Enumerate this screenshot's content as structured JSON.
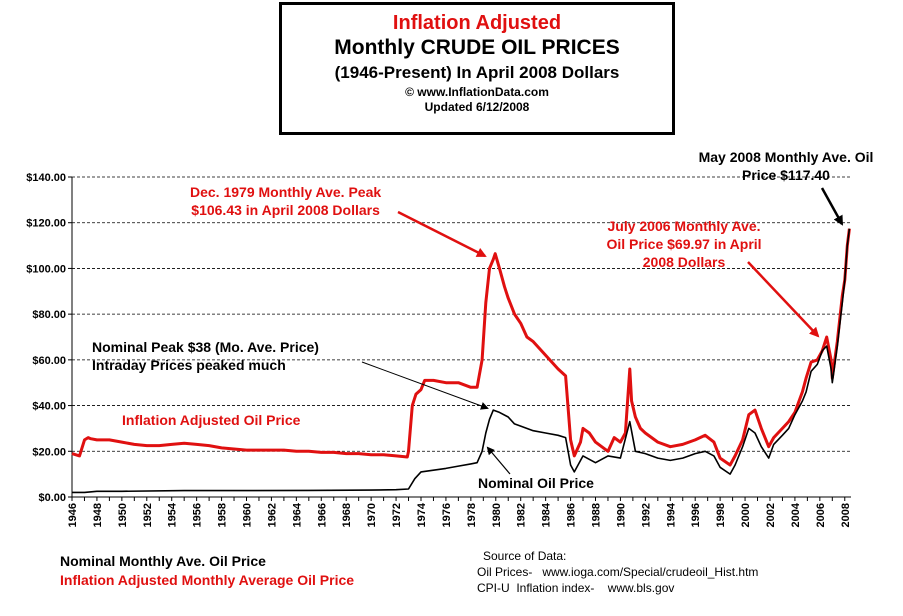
{
  "title": {
    "line1": "Inflation Adjusted",
    "line2": "Monthly CRUDE OIL PRICES",
    "line3": "(1946-Present) In April 2008 Dollars",
    "line4": "© www.InflationData.com",
    "line5": "Updated 6/12/2008"
  },
  "annotations": {
    "peak_1979": [
      "Dec. 1979 Monthly Ave. Peak",
      "$106.43 in April 2008 Dollars"
    ],
    "july_2006": [
      "July 2006 Monthly Ave.",
      "Oil Price $69.97 in April",
      "2008 Dollars"
    ],
    "may_2008": [
      "May 2008 Monthly Ave. Oil",
      "Price $117.40"
    ],
    "nominal_peak": [
      "Nominal Peak $38 (Mo. Ave. Price)",
      "Intraday Prices peaked much"
    ],
    "adjusted_label": "Inflation Adjusted Oil Price",
    "nominal_label": "Nominal Oil Price"
  },
  "legend": {
    "nominal": "Nominal Monthly Ave. Oil Price",
    "adjusted": "Inflation Adjusted Monthly Average Oil Price"
  },
  "source": {
    "heading": "Source of Data:",
    "line1": "Oil Prices-   www.ioga.com/Special/crudeoil_Hist.htm",
    "line2": "CPI-U  Inflation index-    www.bls.gov"
  },
  "colors": {
    "adjusted": "#e01010",
    "nominal": "#000000"
  },
  "chart_data": {
    "type": "line",
    "title": "Inflation Adjusted Monthly CRUDE OIL PRICES",
    "xlabel": "",
    "ylabel": "",
    "xlim": [
      1946,
      2008.5
    ],
    "ylim": [
      0,
      140
    ],
    "x_ticks": [
      1946,
      1948,
      1950,
      1952,
      1954,
      1956,
      1958,
      1960,
      1962,
      1964,
      1966,
      1968,
      1970,
      1972,
      1974,
      1976,
      1978,
      1980,
      1982,
      1984,
      1986,
      1988,
      1990,
      1992,
      1994,
      1996,
      1998,
      2000,
      2002,
      2004,
      2006,
      2008
    ],
    "y_ticks": [
      0,
      20,
      40,
      60,
      80,
      100,
      120,
      140
    ],
    "y_tick_labels": [
      "$0.00",
      "$20.00",
      "$40.00",
      "$60.00",
      "$80.00",
      "$100.00",
      "$120.00",
      "$140.00"
    ],
    "grid": "horizontal dashed",
    "series": [
      {
        "name": "Inflation Adjusted Monthly Average Oil Price",
        "color": "#e01010",
        "x": [
          1946,
          1946.6,
          1947.0,
          1947.3,
          1947.5,
          1948.0,
          1949.0,
          1950.0,
          1951.0,
          1952.0,
          1953.0,
          1954.0,
          1955.0,
          1956.0,
          1957.0,
          1958.0,
          1959.0,
          1960.0,
          1961.0,
          1962.0,
          1963.0,
          1964.0,
          1965.0,
          1966.0,
          1967.0,
          1968.0,
          1969.0,
          1970.0,
          1971.0,
          1972.0,
          1972.9,
          1973.0,
          1973.3,
          1973.6,
          1974.0,
          1974.3,
          1975.0,
          1976.0,
          1977.0,
          1978.0,
          1978.5,
          1978.9,
          1979.2,
          1979.5,
          1979.8,
          1979.95,
          1980.3,
          1980.7,
          1981.0,
          1981.5,
          1982.0,
          1982.5,
          1983.0,
          1984.0,
          1985.0,
          1985.6,
          1986.0,
          1986.3,
          1986.8,
          1987.0,
          1987.5,
          1988.0,
          1988.5,
          1989.0,
          1989.5,
          1990.0,
          1990.4,
          1990.75,
          1990.9,
          1991.2,
          1991.6,
          1992.0,
          1993.0,
          1994.0,
          1995.0,
          1996.0,
          1996.8,
          1997.5,
          1998.0,
          1998.8,
          1999.2,
          1999.8,
          2000.3,
          2000.8,
          2001.3,
          2001.9,
          2002.3,
          2003.0,
          2003.5,
          2004.0,
          2004.6,
          2004.9,
          2005.3,
          2005.8,
          2006.2,
          2006.55,
          2006.9,
          2007.0,
          2007.4,
          2007.8,
          2008.0,
          2008.2,
          2008.37
        ],
        "y": [
          19,
          18,
          25,
          26,
          25.5,
          25,
          25,
          24,
          23,
          22.5,
          22.5,
          23,
          23.5,
          23,
          22.5,
          21.5,
          21,
          20.5,
          20.5,
          20.5,
          20.5,
          20,
          20,
          19.5,
          19.5,
          19,
          19,
          18.5,
          18.5,
          18,
          17.5,
          20,
          40,
          45,
          47,
          51,
          51,
          50,
          50,
          48,
          48,
          60,
          85,
          100,
          104,
          106.43,
          100,
          92,
          87,
          80,
          76,
          70,
          68,
          62,
          56,
          53,
          25,
          18,
          24,
          30,
          28,
          24,
          22,
          20,
          26,
          24,
          28,
          56,
          42,
          35,
          30,
          28,
          24,
          22,
          23,
          25,
          27,
          24,
          17,
          14,
          18,
          25,
          36,
          38,
          30,
          22,
          26,
          30,
          33,
          37,
          46,
          52,
          59,
          60,
          64,
          69.97,
          60,
          52,
          68,
          88,
          95,
          110,
          117.4
        ]
      },
      {
        "name": "Nominal Monthly Ave. Oil Price",
        "color": "#000000",
        "x": [
          1946,
          1947,
          1948,
          1950,
          1955,
          1960,
          1965,
          1970,
          1972,
          1973,
          1973.5,
          1974,
          1976,
          1977,
          1978,
          1978.5,
          1978.9,
          1979.2,
          1979.5,
          1979.8,
          1980.3,
          1981,
          1981.5,
          1982,
          1983,
          1984,
          1985,
          1985.6,
          1986,
          1986.3,
          1987,
          1988,
          1989,
          1990,
          1990.75,
          1991.2,
          1992,
          1993,
          1994,
          1995,
          1996,
          1996.8,
          1997.5,
          1998,
          1998.8,
          1999.2,
          1999.8,
          2000.3,
          2000.8,
          2001.3,
          2001.9,
          2002.3,
          2003,
          2003.5,
          2004,
          2004.6,
          2004.9,
          2005.3,
          2005.8,
          2006.2,
          2006.55,
          2006.9,
          2007,
          2007.4,
          2007.8,
          2008,
          2008.2,
          2008.37
        ],
        "y": [
          2,
          2,
          2.5,
          2.5,
          2.8,
          2.8,
          2.9,
          3,
          3.2,
          3.5,
          8,
          11,
          12.5,
          13.5,
          14.5,
          15,
          20,
          28,
          34,
          38,
          37,
          35,
          32,
          31,
          29,
          28,
          27,
          26,
          14,
          11,
          18,
          15,
          18,
          17,
          33,
          20,
          19,
          17,
          16,
          17,
          19,
          20,
          18,
          13,
          10,
          14,
          22,
          30,
          28,
          22,
          17,
          23,
          27,
          30,
          36,
          42,
          46,
          55,
          58,
          64,
          66,
          56,
          50,
          66,
          85,
          95,
          110,
          117.4
        ]
      }
    ]
  }
}
